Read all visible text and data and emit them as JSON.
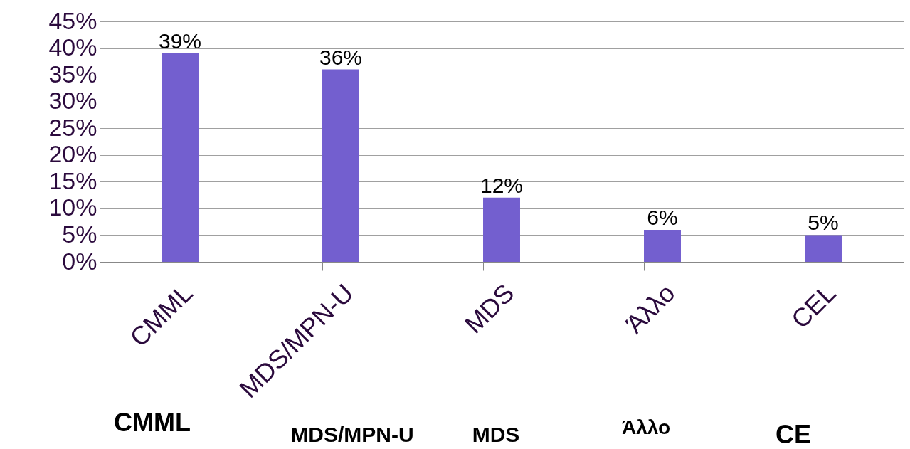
{
  "chart_data": {
    "type": "bar",
    "categories": [
      "CMML",
      "MDS/MPN-U",
      "MDS",
      "Άλλο",
      "CEL"
    ],
    "values": [
      39,
      36,
      12,
      6,
      5
    ],
    "value_labels": [
      "39%",
      "36%",
      "12%",
      "6%",
      "5%"
    ],
    "color": "#735fcf",
    "ylim": [
      0,
      45
    ],
    "yticks": [
      {
        "value": 0,
        "label": "0%"
      },
      {
        "value": 5,
        "label": "5%"
      },
      {
        "value": 10,
        "label": "10%"
      },
      {
        "value": 15,
        "label": "15%"
      },
      {
        "value": 20,
        "label": "20%"
      },
      {
        "value": 25,
        "label": "25%"
      },
      {
        "value": 30,
        "label": "30%"
      },
      {
        "value": 35,
        "label": "35%"
      },
      {
        "value": 40,
        "label": "40%"
      },
      {
        "value": 45,
        "label": "45%"
      }
    ],
    "grid": "y",
    "annotations": [
      "CMML",
      "MDS/MPN-U",
      "MDS",
      "Άλλο",
      "CE"
    ]
  }
}
